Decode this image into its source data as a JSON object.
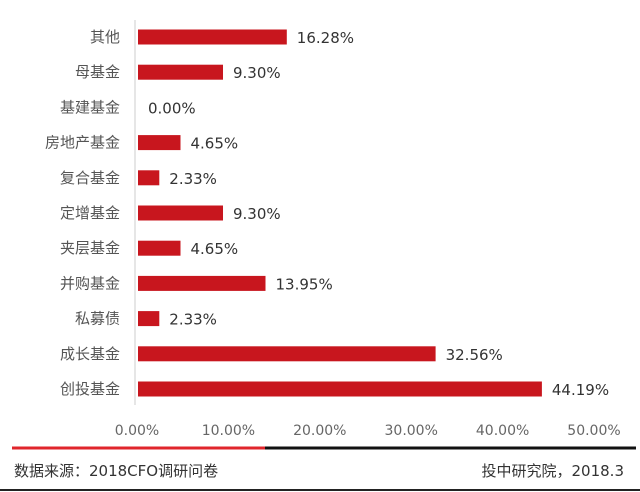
{
  "chart_data": {
    "type": "bar",
    "orientation": "horizontal",
    "categories": [
      "其他",
      "母基金",
      "基建基金",
      "房地产基金",
      "复合基金",
      "定增基金",
      "夹层基金",
      "并购基金",
      "私募债",
      "成长基金",
      "创投基金"
    ],
    "values": [
      16.28,
      9.3,
      0.0,
      4.65,
      2.33,
      9.3,
      4.65,
      13.95,
      2.33,
      32.56,
      44.19
    ],
    "value_labels": [
      "16.28%",
      "9.30%",
      "0.00%",
      "4.65%",
      "2.33%",
      "9.30%",
      "4.65%",
      "13.95%",
      "2.33%",
      "32.56%",
      "44.19%"
    ],
    "xlim": [
      0,
      50
    ],
    "x_ticks": [
      "0.00%",
      "10.00%",
      "20.00%",
      "30.00%",
      "40.00%",
      "50.00%"
    ],
    "bar_color": "#c8161e",
    "grid": false,
    "title": "",
    "xlabel": "",
    "ylabel": ""
  },
  "footer": {
    "source": "数据来源：2018CFO调研问卷",
    "credit": "投中研究院，2018.3"
  }
}
